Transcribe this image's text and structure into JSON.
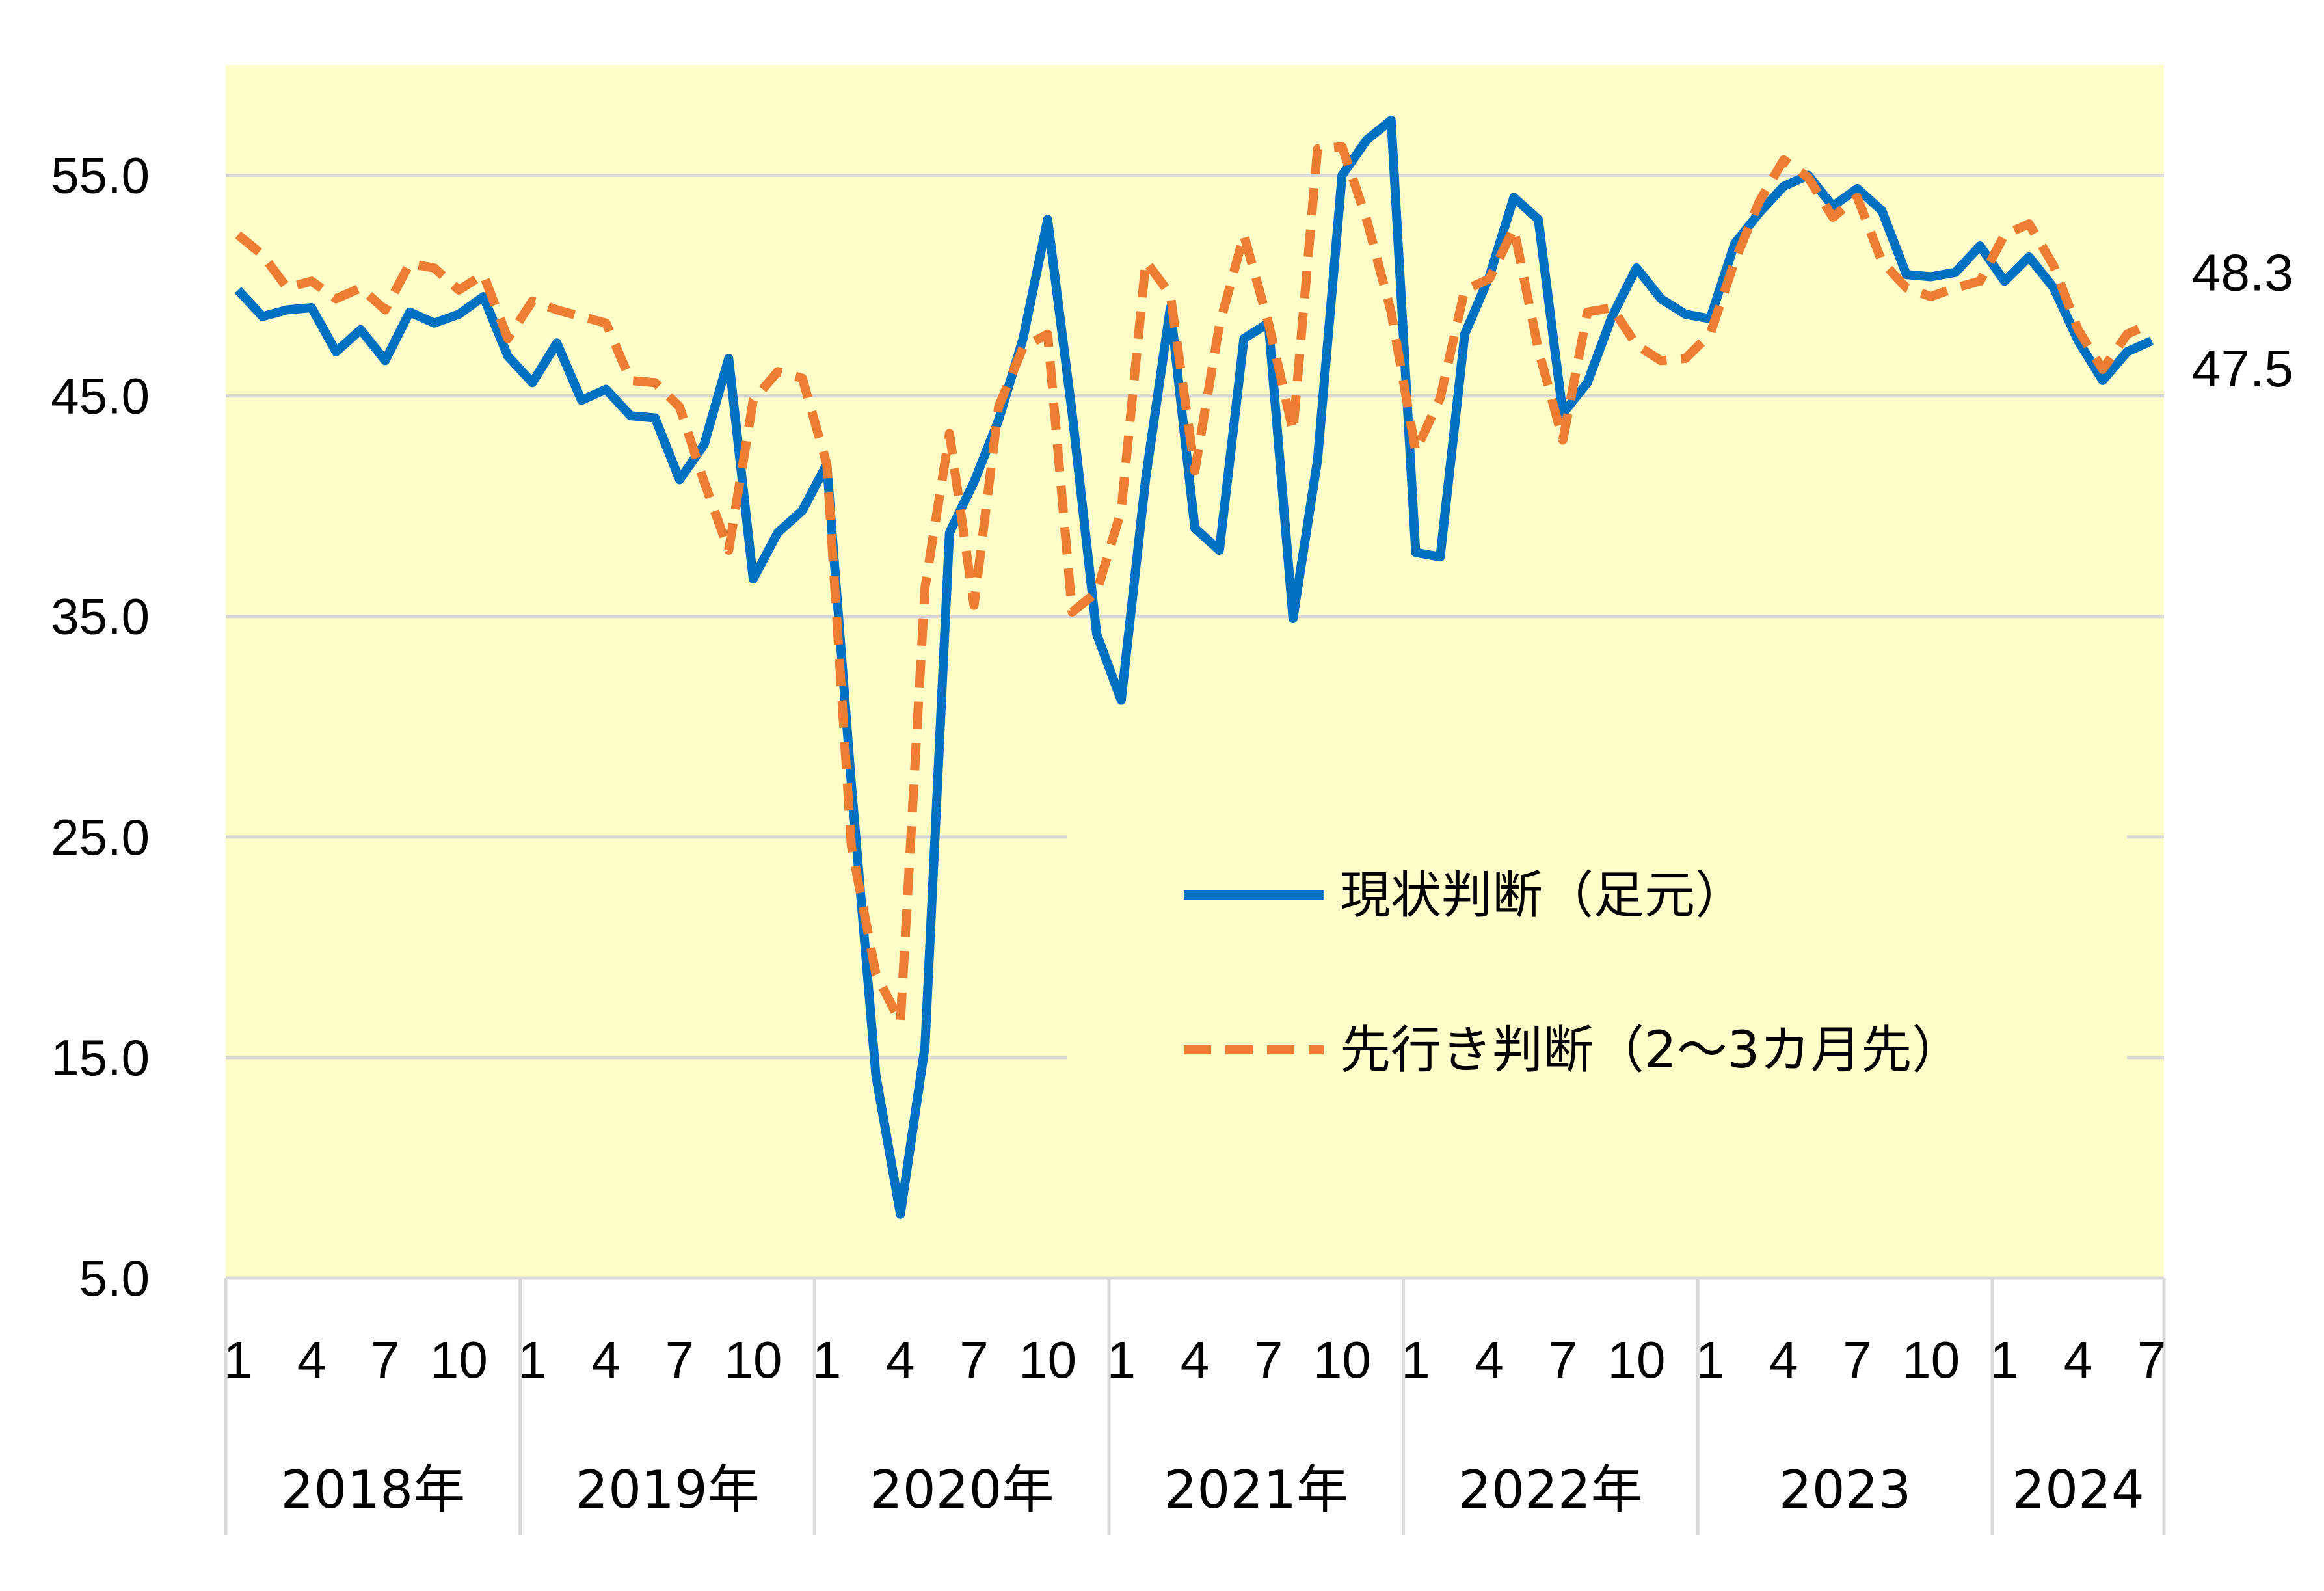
{
  "chart_data": {
    "type": "line",
    "ylim": [
      5,
      60
    ],
    "y_ticks": [
      "55.0",
      "45.0",
      "35.0",
      "25.0",
      "15.0",
      "5.0"
    ],
    "y_tick_values": [
      55,
      45,
      35,
      25,
      15,
      5
    ],
    "grid": true,
    "plot_background": "#FFFDC8",
    "legend_position": "center-right",
    "x_month_labels": [
      "1",
      "4",
      "7",
      "10",
      "1",
      "4",
      "7",
      "10",
      "1",
      "4",
      "7",
      "10",
      "1",
      "4",
      "7",
      "10",
      "1",
      "4",
      "7",
      "10",
      "1",
      "4",
      "7",
      "10",
      "1",
      "4",
      "7"
    ],
    "x_month_label_index": [
      0,
      3,
      6,
      9,
      12,
      15,
      18,
      21,
      24,
      27,
      30,
      33,
      36,
      39,
      42,
      45,
      48,
      51,
      54,
      57,
      60,
      63,
      66,
      69,
      72,
      75,
      78
    ],
    "year_groups": [
      {
        "label": "2018年",
        "start": 0,
        "end": 12
      },
      {
        "label": "2019年",
        "start": 12,
        "end": 24
      },
      {
        "label": "2020年",
        "start": 24,
        "end": 36
      },
      {
        "label": "2021年",
        "start": 36,
        "end": 48
      },
      {
        "label": "2022年",
        "start": 48,
        "end": 60
      },
      {
        "label": "2023",
        "start": 60,
        "end": 72
      },
      {
        "label": "2024",
        "start": 72,
        "end": 79
      }
    ],
    "series": [
      {
        "name": "現状判断（足元）",
        "color": "#0070C0",
        "style": "solid",
        "end_label": "47.5",
        "values": [
          49.8,
          48.6,
          48.9,
          49.0,
          47.0,
          48.0,
          46.6,
          48.8,
          48.3,
          48.7,
          49.5,
          46.8,
          45.6,
          47.4,
          44.8,
          45.3,
          44.1,
          44.0,
          41.2,
          42.8,
          46.7,
          36.7,
          38.8,
          39.8,
          41.9,
          27.4,
          14.2,
          7.9,
          15.5,
          38.8,
          41.1,
          43.9,
          47.6,
          53.0,
          44.2,
          34.2,
          31.2,
          41.3,
          49.0,
          39.0,
          38.0,
          47.6,
          48.3,
          34.9,
          42.1,
          55.0,
          56.6,
          57.5,
          37.9,
          37.7,
          47.8,
          50.4,
          54.0,
          53.0,
          44.2,
          45.6,
          48.6,
          50.8,
          49.4,
          48.7,
          48.5,
          51.9,
          53.3,
          54.5,
          55.0,
          53.6,
          54.4,
          53.4,
          50.5,
          50.4,
          50.6,
          51.8,
          50.2,
          51.3,
          49.9,
          47.5,
          45.7,
          47.0,
          47.5
        ]
      },
      {
        "name": "先行き判断（2～3カ月先）",
        "color": "#ED7D31",
        "style": "dashed",
        "end_label": "48.3",
        "values": [
          52.3,
          51.4,
          49.9,
          50.2,
          49.4,
          49.9,
          48.9,
          51.0,
          50.8,
          49.8,
          50.5,
          47.6,
          49.3,
          48.9,
          48.6,
          48.3,
          45.7,
          45.6,
          44.5,
          41.1,
          38.0,
          44.8,
          46.1,
          45.8,
          41.9,
          24.6,
          18.8,
          16.6,
          36.3,
          43.3,
          35.5,
          44.5,
          47.2,
          47.8,
          35.2,
          36.1,
          39.8,
          51.1,
          49.6,
          41.6,
          48.2,
          52.3,
          48.3,
          43.4,
          56.2,
          56.3,
          53.0,
          48.8,
          42.5,
          44.9,
          49.8,
          50.3,
          52.6,
          47.1,
          43.0,
          48.8,
          49.0,
          47.3,
          46.6,
          46.7,
          47.8,
          51.1,
          53.8,
          55.7,
          54.9,
          53.1,
          54.0,
          51.1,
          49.9,
          49.5,
          49.9,
          50.2,
          52.3,
          52.8,
          50.9,
          48.0,
          46.2,
          47.8,
          48.3
        ]
      }
    ]
  }
}
